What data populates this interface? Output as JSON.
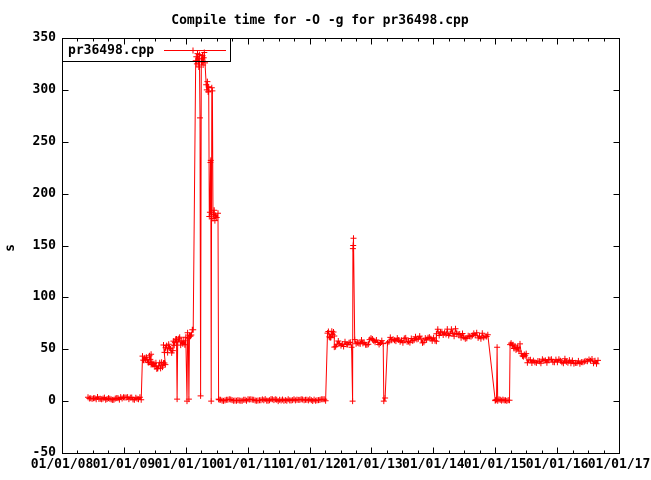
{
  "title": "Compile time for -O -g for pr36498.cpp",
  "legend": {
    "label": "pr36498.cpp"
  },
  "axes": {
    "ylabel": "s",
    "y_ticks": [
      -50,
      0,
      50,
      100,
      150,
      200,
      250,
      300,
      350
    ],
    "x_tick_labels": [
      "01/01/08",
      "01/01/09",
      "01/01/10",
      "01/01/11",
      "01/01/12",
      "01/01/13",
      "01/01/14",
      "01/01/15",
      "01/01/16",
      "01/01/17"
    ],
    "x_minor_divisions": 4
  },
  "colors": {
    "series": "#ff0000",
    "axis": "#000000",
    "text": "#000000",
    "background": "#ffffff"
  },
  "chart_data": {
    "type": "line",
    "title": "Compile time for -O -g for pr36498.cpp",
    "series_name": "pr36498.cpp",
    "marker": "plus",
    "xlabel": "",
    "ylabel": "s",
    "x_unit": "decimal_year",
    "xlim": [
      2008,
      2017
    ],
    "ylim": [
      -50,
      350
    ],
    "grid": false,
    "legend_position": "top-left-boxed",
    "events": [
      {
        "kind": "band",
        "t0": 2008.42,
        "t1": 2009.28,
        "lo": 1,
        "hi": 4,
        "n": 40
      },
      {
        "kind": "band",
        "t0": 2009.3,
        "t1": 2009.44,
        "lo": 36,
        "hi": 46,
        "n": 12
      },
      {
        "kind": "band",
        "t0": 2009.44,
        "t1": 2009.67,
        "lo": 31,
        "hi": 38,
        "n": 16
      },
      {
        "kind": "band",
        "t0": 2009.64,
        "t1": 2009.79,
        "lo": 46,
        "hi": 55,
        "n": 10
      },
      {
        "kind": "band",
        "t0": 2009.8,
        "t1": 2009.85,
        "lo": 52,
        "hi": 60,
        "n": 5
      },
      {
        "kind": "pts",
        "pts": [
          [
            2009.86,
            2
          ]
        ]
      },
      {
        "kind": "band",
        "t0": 2009.87,
        "t1": 2010.0,
        "lo": 52,
        "hi": 62,
        "n": 9
      },
      {
        "kind": "pts",
        "pts": [
          [
            2010.02,
            0
          ]
        ]
      },
      {
        "kind": "band",
        "t0": 2010.03,
        "t1": 2010.04,
        "lo": 58,
        "hi": 66,
        "n": 2
      },
      {
        "kind": "pts",
        "pts": [
          [
            2010.05,
            2
          ]
        ]
      },
      {
        "kind": "band",
        "t0": 2010.06,
        "t1": 2010.12,
        "lo": 60,
        "hi": 70,
        "n": 5
      },
      {
        "kind": "pts",
        "pts": [
          [
            2010.16,
            328
          ],
          [
            2010.17,
            332
          ],
          [
            2010.18,
            325
          ],
          [
            2010.19,
            335
          ],
          [
            2010.2,
            330
          ],
          [
            2010.21,
            322
          ],
          [
            2010.22,
            334
          ],
          [
            2010.23,
            273
          ],
          [
            2010.24,
            5
          ],
          [
            2010.25,
            330
          ],
          [
            2010.26,
            327
          ],
          [
            2010.27,
            333
          ],
          [
            2010.28,
            324
          ],
          [
            2010.29,
            331
          ],
          [
            2010.3,
            336
          ],
          [
            2010.31,
            326
          ],
          [
            2010.33,
            305
          ],
          [
            2010.34,
            300
          ],
          [
            2010.35,
            308
          ],
          [
            2010.36,
            298
          ],
          [
            2010.37,
            303
          ],
          [
            2010.38,
            178
          ],
          [
            2010.39,
            182
          ],
          [
            2010.4,
            230
          ],
          [
            2010.405,
            232
          ],
          [
            2010.41,
            0
          ],
          [
            2010.42,
            302
          ],
          [
            2010.43,
            299
          ],
          [
            2010.44,
            176
          ],
          [
            2010.45,
            180
          ],
          [
            2010.46,
            184
          ],
          [
            2010.47,
            174
          ],
          [
            2010.48,
            179
          ],
          [
            2010.5,
            177
          ],
          [
            2010.52,
            181
          ],
          [
            2010.53,
            2
          ]
        ]
      },
      {
        "kind": "band",
        "t0": 2010.54,
        "t1": 2012.26,
        "lo": 0,
        "hi": 2,
        "n": 75
      },
      {
        "kind": "band",
        "t0": 2012.29,
        "t1": 2012.4,
        "lo": 61,
        "hi": 68,
        "n": 9
      },
      {
        "kind": "band",
        "t0": 2012.4,
        "t1": 2012.68,
        "lo": 51,
        "hi": 58,
        "n": 14
      },
      {
        "kind": "pts",
        "pts": [
          [
            2012.695,
            0
          ],
          [
            2012.7,
            147
          ],
          [
            2012.705,
            150
          ],
          [
            2012.71,
            157
          ]
        ]
      },
      {
        "kind": "band",
        "t0": 2012.73,
        "t1": 2013.19,
        "lo": 54,
        "hi": 61,
        "n": 22
      },
      {
        "kind": "pts",
        "pts": [
          [
            2013.2,
            0
          ],
          [
            2013.22,
            3
          ]
        ]
      },
      {
        "kind": "band",
        "t0": 2013.26,
        "t1": 2014.05,
        "lo": 56,
        "hi": 63,
        "n": 36
      },
      {
        "kind": "band",
        "t0": 2014.05,
        "t1": 2014.38,
        "lo": 62,
        "hi": 70,
        "n": 16
      },
      {
        "kind": "band",
        "t0": 2014.38,
        "t1": 2014.86,
        "lo": 60,
        "hi": 66,
        "n": 22
      },
      {
        "kind": "pts",
        "pts": [
          [
            2014.88,
            64
          ],
          [
            2015.0,
            1
          ]
        ]
      },
      {
        "kind": "band",
        "t0": 2015.0,
        "t1": 2015.02,
        "lo": 0,
        "hi": 2,
        "n": 3
      },
      {
        "kind": "pts",
        "pts": [
          [
            2015.03,
            52
          ]
        ]
      },
      {
        "kind": "band",
        "t0": 2015.04,
        "t1": 2015.23,
        "lo": 0,
        "hi": 2,
        "n": 10
      },
      {
        "kind": "band",
        "t0": 2015.24,
        "t1": 2015.4,
        "lo": 48,
        "hi": 56,
        "n": 11
      },
      {
        "kind": "pts",
        "pts": [
          [
            2015.42,
            46
          ]
        ]
      },
      {
        "kind": "band",
        "t0": 2015.44,
        "t1": 2015.5,
        "lo": 42,
        "hi": 46,
        "n": 5
      },
      {
        "kind": "band",
        "t0": 2015.52,
        "t1": 2016.66,
        "lo": 36,
        "hi": 41,
        "n": 48
      }
    ]
  }
}
